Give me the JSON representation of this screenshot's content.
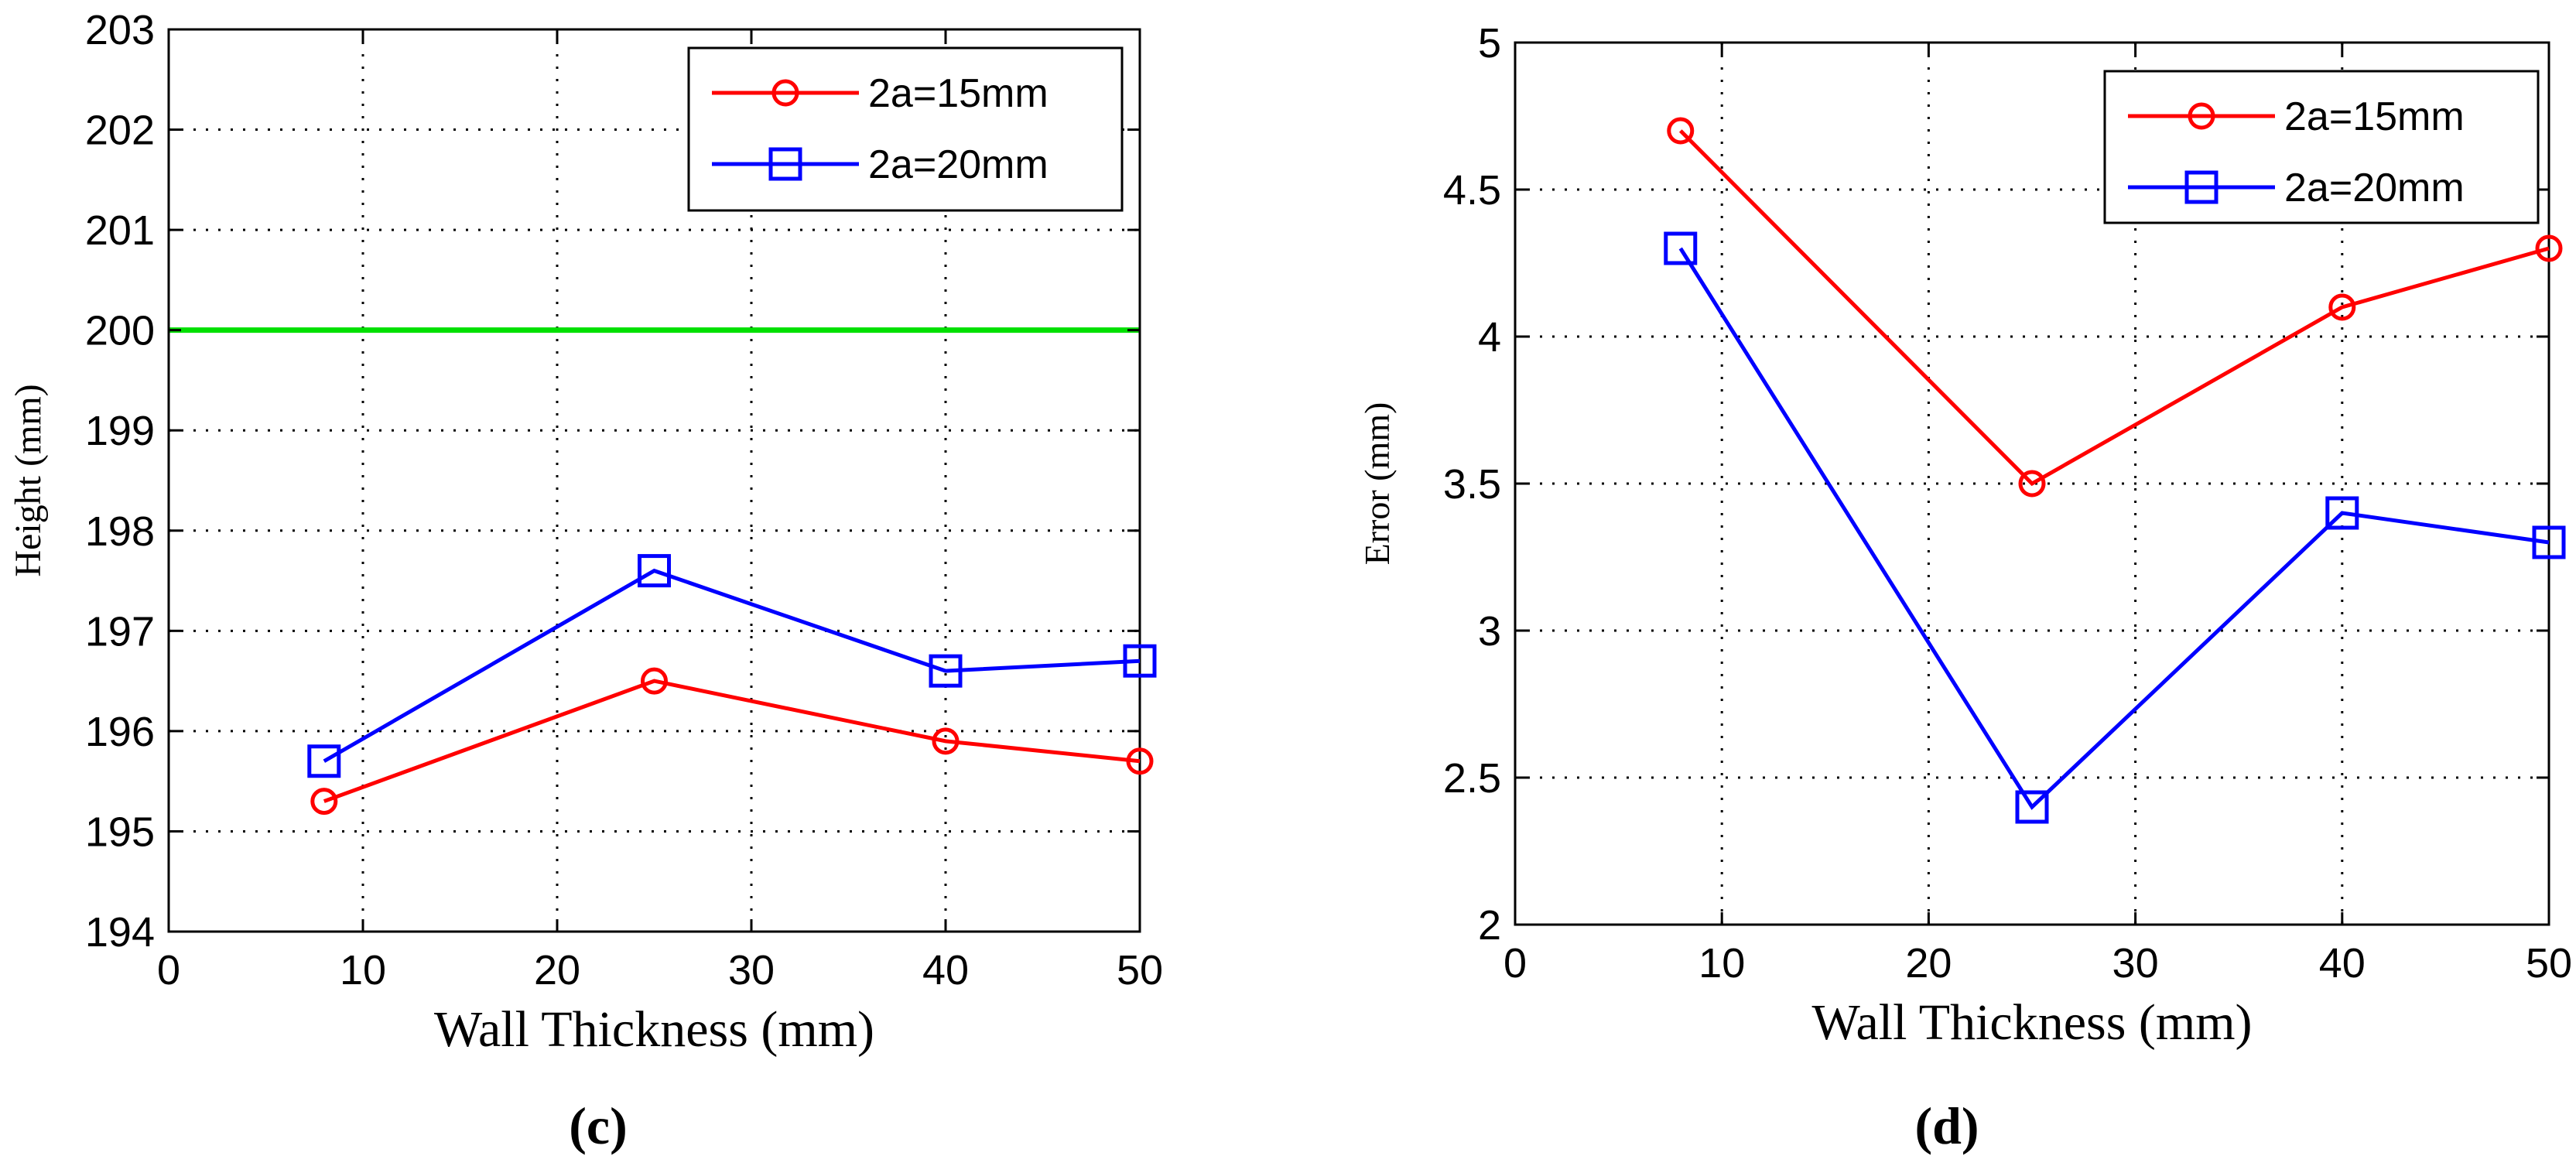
{
  "chart_data": [
    {
      "type": "line",
      "panel_label": "(c)",
      "xlabel": "Wall Thickness (mm)",
      "ylabel": "Height (mm)",
      "xlim": [
        0,
        50
      ],
      "ylim": [
        194,
        203
      ],
      "xticks": [
        0,
        10,
        20,
        30,
        40,
        50
      ],
      "yticks": [
        194,
        195,
        196,
        197,
        198,
        199,
        200,
        201,
        202,
        203
      ],
      "x": [
        8,
        25,
        40,
        50
      ],
      "grid": true,
      "legend_position": "top-right",
      "series": [
        {
          "name": "2a=15mm",
          "color": "#ff0000",
          "marker": "circle",
          "values": [
            195.3,
            196.5,
            195.9,
            195.7
          ]
        },
        {
          "name": "2a=20mm",
          "color": "#0000ff",
          "marker": "square",
          "values": [
            195.7,
            197.6,
            196.6,
            196.7
          ]
        }
      ],
      "reference_lines": [
        {
          "y": 200,
          "color": "#00e000"
        }
      ]
    },
    {
      "type": "line",
      "panel_label": "(d)",
      "xlabel": "Wall Thickness (mm)",
      "ylabel": "Error (mm)",
      "xlim": [
        0,
        50
      ],
      "ylim": [
        2,
        5
      ],
      "xticks": [
        0,
        10,
        20,
        30,
        40,
        50
      ],
      "yticks": [
        2,
        2.5,
        3,
        3.5,
        4,
        4.5,
        5
      ],
      "x": [
        8,
        25,
        40,
        50
      ],
      "grid": true,
      "legend_position": "top-right",
      "series": [
        {
          "name": "2a=15mm",
          "color": "#ff0000",
          "marker": "circle",
          "values": [
            4.7,
            3.5,
            4.1,
            4.3
          ]
        },
        {
          "name": "2a=20mm",
          "color": "#0000ff",
          "marker": "square",
          "values": [
            4.3,
            2.4,
            3.4,
            3.3
          ]
        }
      ],
      "reference_lines": []
    }
  ]
}
